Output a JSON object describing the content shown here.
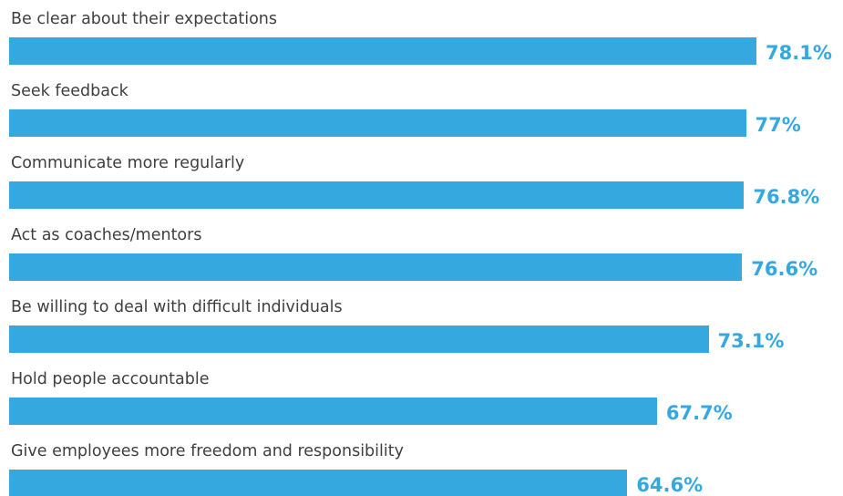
{
  "chart_data": {
    "type": "bar",
    "orientation": "horizontal",
    "categories": [
      "Be clear about their expectations",
      "Seek feedback",
      "Communicate more regularly",
      "Act as coaches/mentors",
      "Be willing to deal with difficult individuals",
      "Hold people accountable",
      "Give employees more freedom and responsibility"
    ],
    "values": [
      78.1,
      77,
      76.8,
      76.6,
      73.1,
      67.7,
      64.6
    ],
    "value_labels": [
      "78.1%",
      "77%",
      "76.8%",
      "76.6%",
      "73.1%",
      "67.7%",
      "64.6%"
    ],
    "unit": "%",
    "bar_color": "#35a8e0",
    "value_label_color": "#35a8e0",
    "label_color": "#3f3f3f",
    "grid": false,
    "legend": "none"
  }
}
